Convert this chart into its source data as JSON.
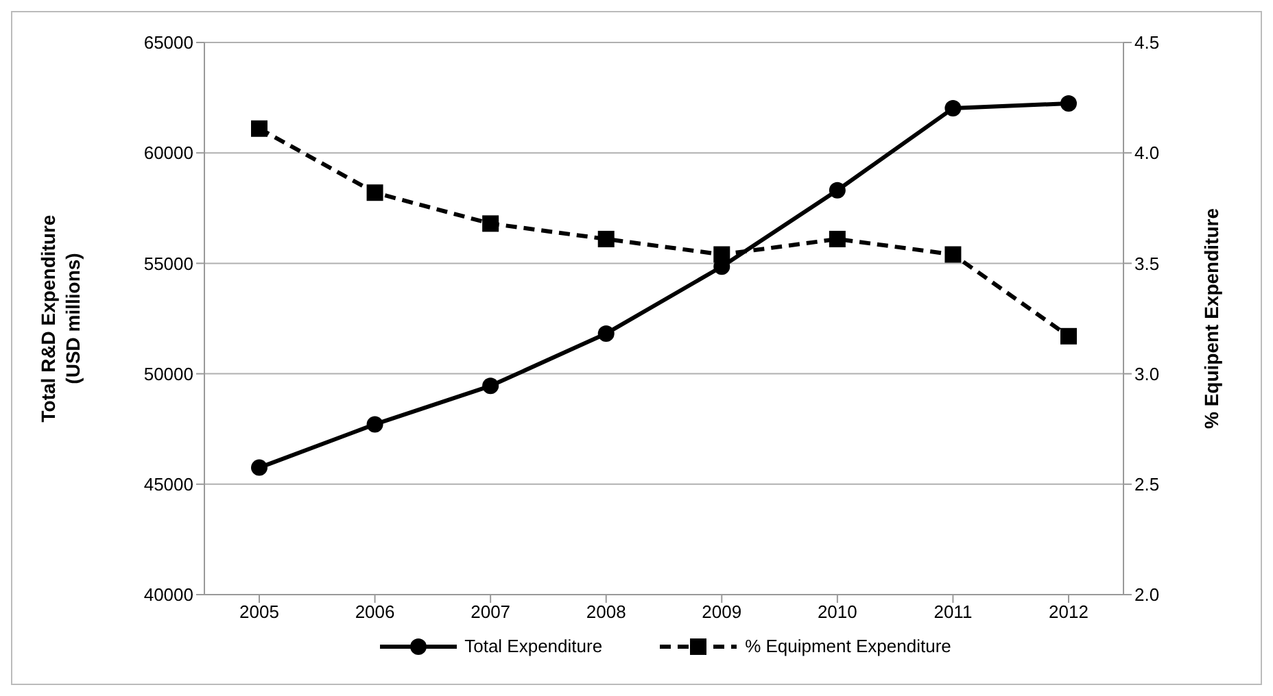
{
  "chart_data": {
    "type": "line",
    "categories": [
      "2005",
      "2006",
      "2007",
      "2008",
      "2009",
      "2010",
      "2011",
      "2012"
    ],
    "ylabel": "Total R&D Expenditure (USD millions)",
    "y2label": "% Equipent Expenditure",
    "ylim": [
      40000,
      65000
    ],
    "yticks": [
      40000,
      45000,
      50000,
      55000,
      60000,
      65000
    ],
    "y2lim": [
      2.0,
      4.5
    ],
    "y2ticks": [
      {
        "value": 2.0,
        "label": "2.0"
      },
      2.5,
      {
        "value": 3.0,
        "label": "3.0"
      },
      3.5,
      {
        "value": 4.0,
        "label": "4.0"
      },
      4.5
    ],
    "grid": "y",
    "legend": "bottom",
    "series": [
      {
        "name": "Total Expenditure",
        "color": "#000000",
        "marker": "circle",
        "line_style": "solid",
        "values": [
          45750,
          47710,
          49450,
          51820,
          54850,
          58310,
          62020,
          62240
        ]
      },
      {
        "name": "% Equipment Expenditure",
        "color": "#000000",
        "marker": "square",
        "line_style": "dashed",
        "axis": "y2",
        "values": [
          4.11,
          3.82,
          3.68,
          3.61,
          3.54,
          3.61,
          3.54,
          3.17
        ]
      }
    ]
  }
}
